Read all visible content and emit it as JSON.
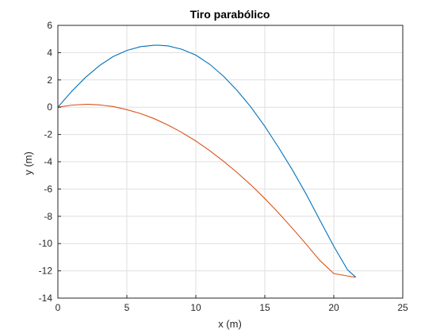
{
  "chart_data": {
    "type": "line",
    "title": "Tiro parabólico",
    "xlabel": "x (m)",
    "ylabel": "y (m)",
    "xlim": [
      0,
      25
    ],
    "ylim": [
      -14,
      6
    ],
    "xticks": [
      0,
      5,
      10,
      15,
      20,
      25
    ],
    "yticks": [
      -14,
      -12,
      -10,
      -8,
      -6,
      -4,
      -2,
      0,
      2,
      4,
      6
    ],
    "grid": true,
    "colors": [
      "#0072bd",
      "#d95319"
    ],
    "series": [
      {
        "x": [
          0,
          1,
          2,
          3,
          4,
          5,
          6,
          7,
          7.3,
          8,
          9,
          10,
          11,
          12,
          13,
          14,
          15,
          16,
          17,
          18,
          19,
          20,
          21,
          21.6
        ],
        "y": [
          0,
          1.16,
          2.18,
          3.04,
          3.71,
          4.16,
          4.44,
          4.54,
          4.54,
          4.49,
          4.24,
          3.82,
          3.15,
          2.28,
          1.22,
          0.0,
          -1.4,
          -2.96,
          -4.6,
          -6.38,
          -8.3,
          -10.2,
          -11.93,
          -12.47
        ]
      },
      {
        "x": [
          0,
          1,
          2,
          2.3,
          3,
          4,
          5,
          6,
          7,
          8,
          9,
          10,
          11,
          12,
          13,
          14,
          15,
          16,
          17,
          18,
          19,
          20,
          21,
          21.6
        ],
        "y": [
          0,
          0.15,
          0.21,
          0.21,
          0.17,
          0.05,
          -0.18,
          -0.47,
          -0.85,
          -1.32,
          -1.86,
          -2.48,
          -3.18,
          -3.96,
          -4.8,
          -5.71,
          -6.7,
          -7.76,
          -8.88,
          -10.05,
          -11.25,
          -12.2,
          -12.38,
          -12.47
        ]
      }
    ]
  }
}
